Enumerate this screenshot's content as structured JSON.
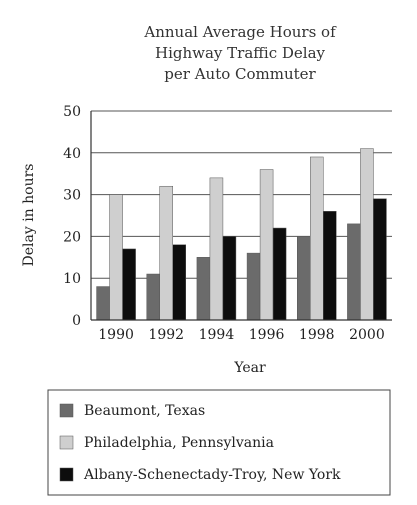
{
  "chart_data": {
    "type": "bar",
    "title": [
      "Annual Average Hours of",
      "Highway Traffic Delay",
      "per Auto Commuter"
    ],
    "xlabel": "Year",
    "ylabel": "Delay in hours",
    "ylim": [
      0,
      50
    ],
    "yticks": [
      "0",
      "10",
      "20",
      "30",
      "40",
      "50"
    ],
    "categories": [
      "1990",
      "1992",
      "1994",
      "1996",
      "1998",
      "2000"
    ],
    "grid": true,
    "legend_position": "bottom",
    "series": [
      {
        "name": "Beaumont, Texas",
        "color": "#6b6b6b",
        "values": [
          8,
          11,
          15,
          16,
          20,
          23
        ]
      },
      {
        "name": "Philadelphia, Pennsylvania",
        "color": "#cfcfcf",
        "values": [
          30,
          32,
          34,
          36,
          39,
          41
        ]
      },
      {
        "name": "Albany-Schenectady-Troy, New York",
        "color": "#0d0d0d",
        "values": [
          17,
          18,
          20,
          22,
          26,
          29
        ]
      }
    ]
  }
}
